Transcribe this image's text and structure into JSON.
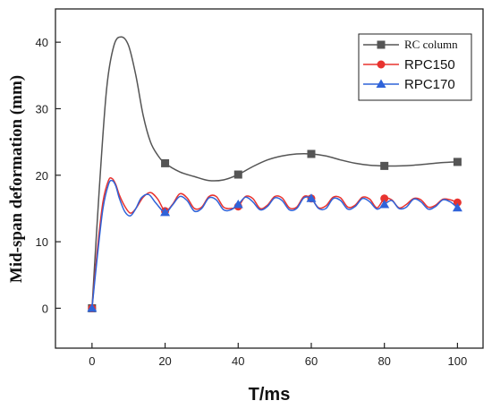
{
  "chart_data": {
    "type": "line",
    "xlabel": "T/ms",
    "ylabel": "Mid-span deformation (mm)",
    "xlim": [
      -10,
      107
    ],
    "ylim": [
      -6,
      45
    ],
    "x_ticks": [
      0,
      20,
      40,
      60,
      80,
      100
    ],
    "y_ticks": [
      0,
      10,
      20,
      30,
      40
    ],
    "grid": false,
    "legend_position": "top-right",
    "series": [
      {
        "name": "RC column",
        "color": "#555555",
        "marker": "square",
        "marker_x": [
          0,
          20,
          40,
          60,
          80,
          100
        ],
        "marker_y": [
          0,
          21.8,
          20.1,
          23.2,
          21.4,
          22.0
        ],
        "x": [
          0,
          2,
          4,
          6,
          8,
          10,
          12,
          14,
          16,
          18,
          20,
          24,
          28,
          32,
          36,
          40,
          44,
          48,
          52,
          56,
          60,
          64,
          68,
          72,
          76,
          80,
          84,
          88,
          92,
          96,
          100
        ],
        "y": [
          0,
          18,
          33,
          39.5,
          40.8,
          39.5,
          35,
          29,
          25,
          23,
          21.8,
          20.5,
          19.8,
          19.2,
          19.3,
          20.1,
          21.3,
          22.3,
          22.9,
          23.2,
          23.2,
          22.9,
          22.3,
          21.8,
          21.5,
          21.4,
          21.4,
          21.5,
          21.7,
          21.9,
          22.0
        ]
      },
      {
        "name": "RPC150",
        "color": "#e8332f",
        "marker": "circle",
        "marker_x": [
          0,
          20,
          40,
          60,
          80,
          100
        ],
        "marker_y": [
          0,
          14.6,
          15.3,
          16.5,
          16.5,
          15.9
        ],
        "x": [
          0,
          1.5,
          3,
          4.5,
          5.5,
          6.5,
          7.5,
          9,
          10.5,
          12,
          14,
          16,
          18,
          20,
          22,
          24,
          26,
          28,
          30,
          32,
          34,
          36,
          38,
          40,
          42,
          44,
          46,
          48,
          50,
          52,
          54,
          56,
          58,
          60,
          62,
          64,
          66,
          68,
          70,
          72,
          74,
          76,
          78,
          80,
          82,
          84,
          86,
          88,
          90,
          92,
          94,
          96,
          98,
          100
        ],
        "y": [
          0,
          9,
          16,
          19.2,
          19.5,
          18.6,
          17.0,
          15.3,
          14.3,
          15.0,
          16.7,
          17.4,
          16.4,
          14.6,
          15.6,
          17.2,
          16.6,
          15.0,
          15.2,
          16.8,
          16.8,
          15.2,
          15.0,
          15.3,
          16.8,
          16.5,
          15.0,
          15.5,
          16.8,
          16.6,
          15.1,
          15.2,
          16.8,
          16.5,
          15.1,
          15.4,
          16.7,
          16.6,
          15.2,
          15.5,
          16.7,
          16.4,
          15.1,
          16.5,
          16.3,
          15.1,
          15.6,
          16.5,
          16.3,
          15.2,
          15.5,
          16.4,
          16.3,
          15.9
        ]
      },
      {
        "name": "RPC170",
        "color": "#2f63d9",
        "marker": "triangle",
        "marker_x": [
          0,
          20,
          40,
          60,
          80,
          100
        ],
        "marker_y": [
          0,
          14.4,
          15.6,
          16.5,
          15.6,
          15.1
        ],
        "x": [
          0,
          1.5,
          3,
          4.5,
          5.5,
          6.5,
          7.5,
          9,
          10.5,
          12,
          13.5,
          15.5,
          17.5,
          20,
          22,
          24,
          26,
          28,
          30,
          32,
          34,
          36,
          38,
          40,
          42,
          44,
          46,
          48,
          50,
          52,
          54,
          56,
          58,
          60,
          62,
          64,
          66,
          68,
          70,
          72,
          74,
          76,
          78,
          80,
          82,
          84,
          86,
          88,
          90,
          92,
          94,
          96,
          98,
          100
        ],
        "y": [
          0,
          8,
          15,
          18.6,
          19.2,
          18.4,
          16.5,
          14.5,
          13.9,
          15.0,
          16.6,
          17.1,
          15.8,
          14.4,
          15.5,
          16.8,
          16.2,
          14.6,
          15.0,
          16.6,
          16.3,
          14.8,
          14.8,
          15.6,
          16.7,
          16.0,
          14.8,
          15.3,
          16.6,
          16.2,
          14.8,
          15.0,
          16.6,
          16.5,
          15.0,
          15.0,
          16.5,
          16.2,
          14.9,
          15.3,
          16.5,
          16.0,
          14.9,
          15.6,
          16.2,
          15.0,
          15.2,
          16.4,
          16.0,
          14.9,
          15.3,
          16.3,
          16.0,
          15.1
        ]
      }
    ]
  }
}
